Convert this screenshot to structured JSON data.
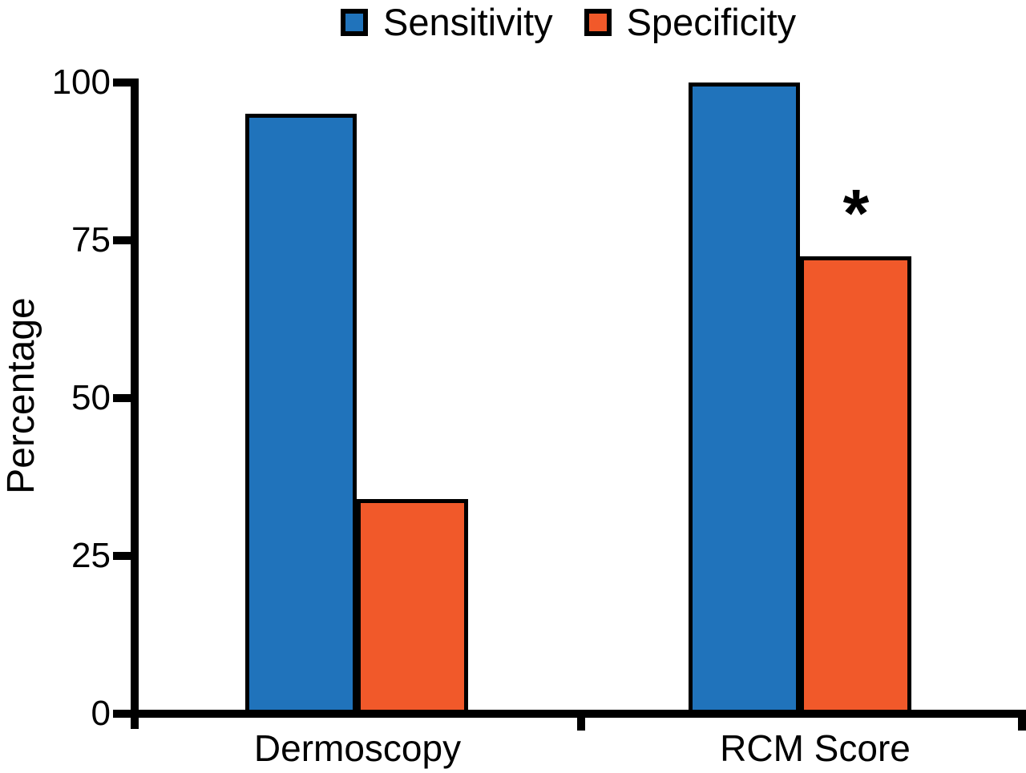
{
  "figure": {
    "background_color": "#ffffff",
    "axis_color": "#000000",
    "text_color": "#000000"
  },
  "legend": {
    "position": "top",
    "items": [
      {
        "label": "Sensitivity",
        "color": "#2073BB",
        "swatch": "square-icon"
      },
      {
        "label": "Specificity",
        "color": "#F1592A",
        "swatch": "square-icon"
      }
    ]
  },
  "chart_data": {
    "type": "bar",
    "title": "",
    "categories": [
      "Dermoscopy",
      "RCM Score"
    ],
    "series": [
      {
        "name": "Sensitivity",
        "color": "#2073BB",
        "values": [
          95,
          100
        ]
      },
      {
        "name": "Specificity",
        "color": "#F1592A",
        "values": [
          34,
          72.5
        ]
      }
    ],
    "ylabel": "Percentage",
    "xlabel": "",
    "ylim": [
      0,
      100
    ],
    "yticks": [
      "0",
      "25",
      "50",
      "75",
      "100"
    ],
    "ytick_values": [
      0,
      25,
      50,
      75,
      100
    ],
    "grid": false,
    "legend_position": "top-center",
    "annotations": [
      {
        "text": "*",
        "category": "RCM Score",
        "series": "Specificity",
        "position": "above-bar"
      }
    ]
  }
}
